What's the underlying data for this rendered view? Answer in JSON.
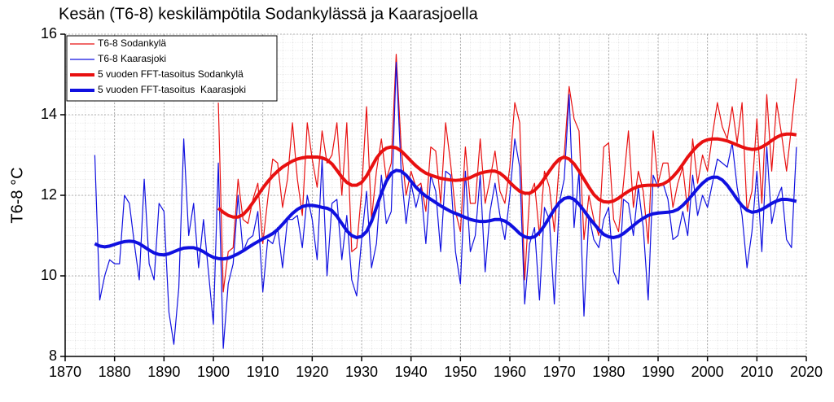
{
  "chart_data": {
    "type": "line",
    "title": "Kesän (T6-8) keskilämpötila Sodankylässä ja Kaarasjoella",
    "y_label": "T6-8 °C",
    "x": [
      1876,
      1877,
      1878,
      1879,
      1880,
      1881,
      1882,
      1883,
      1884,
      1885,
      1886,
      1887,
      1888,
      1889,
      1890,
      1891,
      1892,
      1893,
      1894,
      1895,
      1896,
      1897,
      1898,
      1899,
      1900,
      1901,
      1902,
      1903,
      1904,
      1905,
      1906,
      1907,
      1908,
      1909,
      1910,
      1911,
      1912,
      1913,
      1914,
      1915,
      1916,
      1917,
      1918,
      1919,
      1920,
      1921,
      1922,
      1923,
      1924,
      1925,
      1926,
      1927,
      1928,
      1929,
      1930,
      1931,
      1932,
      1933,
      1934,
      1935,
      1936,
      1937,
      1938,
      1939,
      1940,
      1941,
      1942,
      1943,
      1944,
      1945,
      1946,
      1947,
      1948,
      1949,
      1950,
      1951,
      1952,
      1953,
      1954,
      1955,
      1956,
      1957,
      1958,
      1959,
      1960,
      1961,
      1962,
      1963,
      1964,
      1965,
      1966,
      1967,
      1968,
      1969,
      1970,
      1971,
      1972,
      1973,
      1974,
      1975,
      1976,
      1977,
      1978,
      1979,
      1980,
      1981,
      1982,
      1983,
      1984,
      1985,
      1986,
      1987,
      1988,
      1989,
      1990,
      1991,
      1992,
      1993,
      1994,
      1995,
      1996,
      1997,
      1998,
      1999,
      2000,
      2001,
      2002,
      2003,
      2004,
      2005,
      2006,
      2007,
      2008,
      2009,
      2010,
      2011,
      2012,
      2013,
      2014,
      2015,
      2016,
      2017,
      2018
    ],
    "series": [
      {
        "name": "T6-8 Sodankylä",
        "color": "#e81010",
        "line_width": 1.2,
        "values": [
          null,
          null,
          null,
          null,
          null,
          null,
          null,
          null,
          null,
          null,
          null,
          null,
          null,
          null,
          null,
          null,
          null,
          null,
          null,
          null,
          null,
          null,
          null,
          null,
          null,
          14.3,
          9.6,
          10.6,
          10.7,
          12.4,
          11.4,
          11.3,
          11.9,
          12.3,
          10.8,
          11.9,
          12.9,
          12.8,
          11.7,
          12.4,
          13.8,
          12.4,
          11.5,
          13.8,
          12.9,
          12.2,
          13.6,
          12.8,
          13.0,
          13.8,
          12.0,
          13.8,
          10.6,
          10.7,
          12.1,
          14.2,
          11.4,
          12.6,
          13.4,
          12.4,
          12.8,
          15.5,
          13.2,
          12.0,
          12.6,
          12.2,
          12.3,
          11.6,
          13.2,
          13.1,
          11.8,
          13.8,
          12.8,
          11.6,
          11.1,
          13.2,
          11.8,
          11.8,
          13.4,
          11.8,
          12.4,
          13.1,
          12.1,
          11.8,
          12.7,
          14.3,
          13.8,
          9.9,
          12.0,
          12.3,
          11.0,
          12.6,
          12.2,
          11.1,
          12.8,
          13.0,
          14.7,
          13.9,
          13.6,
          10.9,
          12.0,
          11.4,
          11.0,
          13.2,
          13.3,
          11.4,
          11.1,
          12.3,
          13.6,
          11.7,
          12.6,
          12.1,
          10.8,
          13.6,
          12.3,
          12.8,
          12.8,
          11.7,
          12.3,
          12.7,
          11.6,
          13.4,
          12.3,
          13.0,
          12.6,
          13.5,
          14.3,
          13.7,
          13.4,
          14.2,
          13.3,
          14.3,
          11.6,
          12.1,
          13.9,
          11.8,
          14.5,
          12.6,
          14.3,
          13.5,
          12.6,
          13.7,
          14.9
        ]
      },
      {
        "name": "T6-8 Kaarasjoki",
        "color": "#1010e0",
        "line_width": 1.2,
        "values": [
          13.0,
          9.4,
          10.0,
          10.4,
          10.3,
          10.3,
          12.0,
          11.8,
          10.8,
          9.9,
          12.4,
          10.3,
          9.9,
          11.8,
          11.6,
          9.1,
          8.3,
          9.7,
          13.4,
          11.0,
          11.8,
          10.2,
          11.4,
          10.1,
          8.8,
          12.8,
          8.2,
          9.8,
          10.3,
          12.0,
          10.6,
          10.9,
          11.0,
          11.6,
          9.6,
          10.9,
          10.8,
          11.2,
          10.2,
          11.4,
          11.4,
          11.5,
          10.7,
          12.0,
          11.4,
          10.4,
          12.9,
          10.0,
          11.8,
          11.9,
          10.4,
          11.5,
          9.9,
          9.5,
          10.9,
          12.1,
          10.2,
          10.8,
          12.5,
          11.3,
          11.6,
          15.3,
          12.6,
          11.3,
          12.3,
          11.7,
          12.2,
          10.8,
          12.5,
          12.1,
          10.6,
          12.6,
          12.5,
          10.6,
          9.8,
          12.6,
          10.6,
          11.0,
          12.5,
          10.1,
          11.6,
          12.3,
          11.5,
          10.9,
          12.0,
          13.4,
          12.7,
          9.3,
          10.8,
          11.2,
          9.4,
          11.7,
          11.4,
          9.3,
          11.8,
          12.4,
          14.5,
          11.2,
          12.6,
          9.0,
          11.5,
          10.9,
          10.7,
          11.4,
          11.7,
          10.1,
          9.8,
          11.9,
          11.8,
          11.0,
          12.2,
          11.2,
          9.4,
          12.5,
          12.2,
          12.3,
          11.9,
          10.9,
          11.0,
          11.6,
          11.0,
          12.5,
          11.5,
          12.0,
          11.7,
          12.3,
          12.9,
          12.8,
          12.7,
          13.3,
          12.2,
          11.5,
          10.2,
          11.1,
          12.6,
          10.6,
          13.2,
          11.3,
          11.9,
          12.2,
          10.9,
          10.7,
          13.2
        ]
      },
      {
        "name": "5 vuoden FFT-tasoitus Sodankylä",
        "color": "#e81010",
        "line_width": 4,
        "values": [
          null,
          null,
          null,
          null,
          null,
          null,
          null,
          null,
          null,
          null,
          null,
          null,
          null,
          null,
          null,
          null,
          null,
          null,
          null,
          null,
          null,
          null,
          null,
          null,
          null,
          11.68,
          11.58,
          11.5,
          11.46,
          11.46,
          11.52,
          11.65,
          11.82,
          12.0,
          12.18,
          12.34,
          12.48,
          12.6,
          12.7,
          12.78,
          12.85,
          12.9,
          12.93,
          12.95,
          12.95,
          12.95,
          12.93,
          12.88,
          12.78,
          12.62,
          12.45,
          12.32,
          12.25,
          12.25,
          12.32,
          12.48,
          12.7,
          12.92,
          13.08,
          13.17,
          13.2,
          13.18,
          13.1,
          12.98,
          12.85,
          12.73,
          12.63,
          12.55,
          12.5,
          12.46,
          12.42,
          12.4,
          12.38,
          12.37,
          12.38,
          12.4,
          12.44,
          12.5,
          12.55,
          12.58,
          12.6,
          12.6,
          12.55,
          12.45,
          12.32,
          12.2,
          12.1,
          12.05,
          12.05,
          12.12,
          12.25,
          12.42,
          12.6,
          12.77,
          12.9,
          12.95,
          12.9,
          12.78,
          12.6,
          12.4,
          12.2,
          12.02,
          11.9,
          11.84,
          11.83,
          11.86,
          11.93,
          12.02,
          12.1,
          12.17,
          12.22,
          12.24,
          12.25,
          12.25,
          12.25,
          12.28,
          12.35,
          12.46,
          12.6,
          12.77,
          12.95,
          13.1,
          13.23,
          13.33,
          13.38,
          13.4,
          13.4,
          13.38,
          13.35,
          13.3,
          13.25,
          13.2,
          13.16,
          13.14,
          13.15,
          13.2,
          13.27,
          13.36,
          13.44,
          13.5,
          13.52,
          13.52,
          13.5
        ]
      },
      {
        "name": "5 vuoden FFT-tasoitus  Kaarasjoki",
        "color": "#1010e0",
        "line_width": 4,
        "values": [
          10.8,
          10.74,
          10.72,
          10.74,
          10.78,
          10.82,
          10.85,
          10.86,
          10.85,
          10.8,
          10.72,
          10.64,
          10.57,
          10.53,
          10.52,
          10.55,
          10.6,
          10.65,
          10.69,
          10.7,
          10.7,
          10.66,
          10.6,
          10.52,
          10.46,
          10.43,
          10.42,
          10.44,
          10.49,
          10.55,
          10.62,
          10.7,
          10.78,
          10.85,
          10.92,
          10.98,
          11.05,
          11.15,
          11.28,
          11.42,
          11.55,
          11.65,
          11.72,
          11.75,
          11.75,
          11.73,
          11.7,
          11.68,
          11.62,
          11.48,
          11.3,
          11.12,
          11.0,
          10.95,
          10.98,
          11.1,
          11.35,
          11.7,
          12.05,
          12.35,
          12.55,
          12.62,
          12.6,
          12.5,
          12.35,
          12.2,
          12.08,
          11.98,
          11.9,
          11.82,
          11.74,
          11.67,
          11.6,
          11.55,
          11.5,
          11.45,
          11.4,
          11.37,
          11.35,
          11.35,
          11.37,
          11.4,
          11.4,
          11.36,
          11.28,
          11.17,
          11.05,
          10.97,
          10.94,
          10.97,
          11.08,
          11.25,
          11.45,
          11.65,
          11.82,
          11.92,
          11.95,
          11.9,
          11.78,
          11.62,
          11.45,
          11.3,
          11.15,
          11.03,
          10.97,
          10.95,
          10.98,
          11.05,
          11.15,
          11.25,
          11.35,
          11.43,
          11.5,
          11.54,
          11.56,
          11.57,
          11.58,
          11.6,
          11.65,
          11.75,
          11.88,
          12.02,
          12.17,
          12.3,
          12.4,
          12.45,
          12.45,
          12.38,
          12.25,
          12.08,
          11.9,
          11.74,
          11.63,
          11.58,
          11.6,
          11.65,
          11.72,
          11.8,
          11.86,
          11.9,
          11.9,
          11.88,
          11.85
        ]
      }
    ],
    "xlim": [
      1870,
      2020
    ],
    "xticks": [
      1870,
      1880,
      1890,
      1900,
      1910,
      1920,
      1930,
      1940,
      1950,
      1960,
      1970,
      1980,
      1990,
      2000,
      2010,
      2020
    ],
    "ylim": [
      8,
      16
    ],
    "yticks": [
      8,
      10,
      12,
      14,
      16
    ],
    "grid": true,
    "legend": "upper left"
  }
}
